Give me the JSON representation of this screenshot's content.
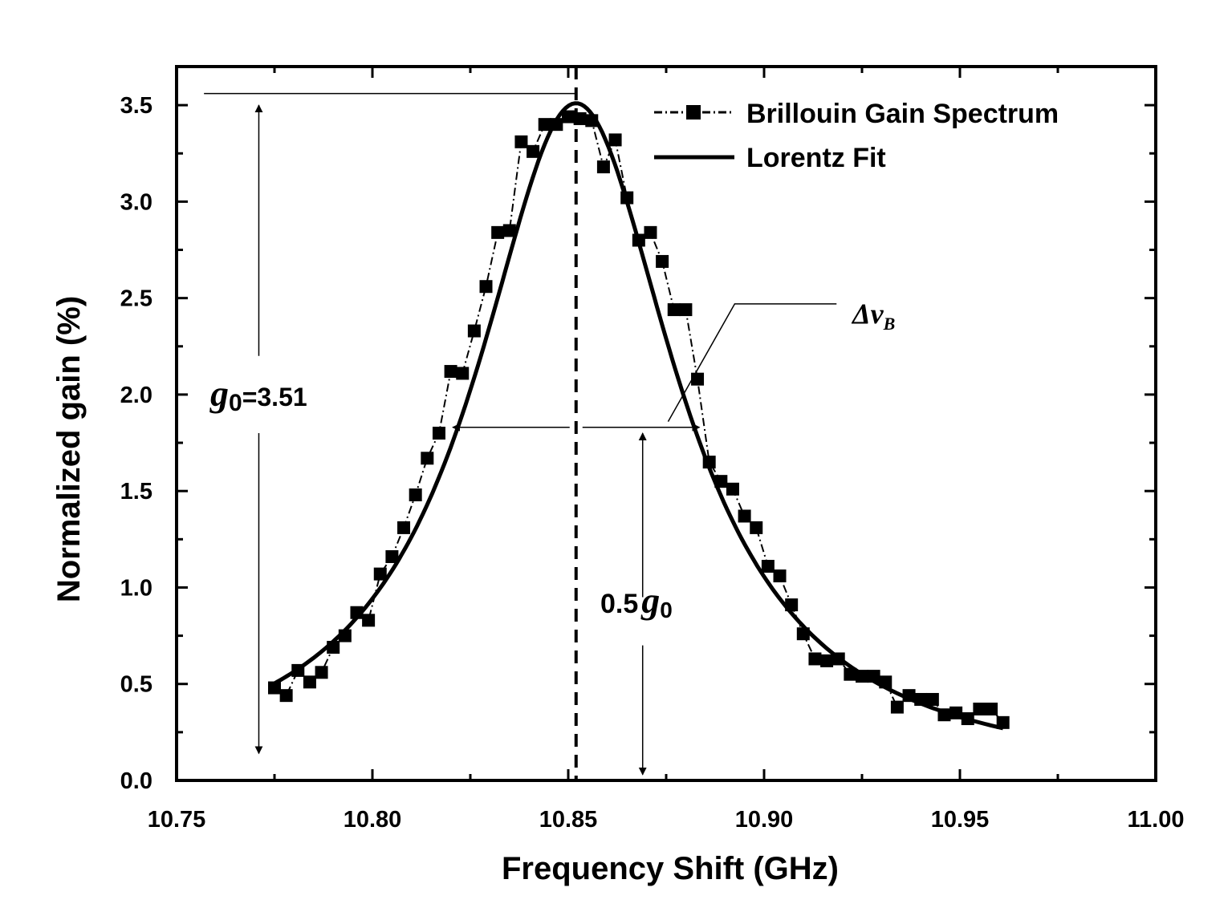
{
  "chart_data": {
    "type": "scatter",
    "xlabel": "Frequency Shift (GHz)",
    "ylabel": "Normalized gain (%)",
    "xlim": [
      10.75,
      11.0
    ],
    "ylim": [
      0.0,
      3.7
    ],
    "x_ticks": [
      "10.75",
      "10.80",
      "10.85",
      "10.90",
      "10.95",
      "11.00"
    ],
    "x_tick_values": [
      10.75,
      10.8,
      10.85,
      10.9,
      10.95,
      11.0
    ],
    "y_ticks": [
      "0.0",
      "0.5",
      "1.0",
      "1.5",
      "2.0",
      "2.5",
      "3.0",
      "3.5"
    ],
    "y_tick_values": [
      0.0,
      0.5,
      1.0,
      1.5,
      2.0,
      2.5,
      3.0,
      3.5
    ],
    "legend_position": "top-right",
    "series": [
      {
        "name": "Brillouin Gain Spectrum",
        "style": "dash-dot line with square markers",
        "x": [
          10.775,
          10.778,
          10.781,
          10.784,
          10.787,
          10.79,
          10.793,
          10.796,
          10.799,
          10.802,
          10.805,
          10.808,
          10.811,
          10.814,
          10.817,
          10.82,
          10.823,
          10.826,
          10.829,
          10.832,
          10.835,
          10.838,
          10.841,
          10.844,
          10.847,
          10.85,
          10.853,
          10.856,
          10.859,
          10.862,
          10.865,
          10.868,
          10.871,
          10.874,
          10.877,
          10.88,
          10.883,
          10.886,
          10.889,
          10.892,
          10.895,
          10.898,
          10.901,
          10.904,
          10.907,
          10.91,
          10.913,
          10.916,
          10.919,
          10.922,
          10.925,
          10.928,
          10.931,
          10.934,
          10.937,
          10.94,
          10.943,
          10.946,
          10.949,
          10.952,
          10.955,
          10.958,
          10.961
        ],
        "y": [
          0.48,
          0.44,
          0.57,
          0.51,
          0.56,
          0.69,
          0.75,
          0.87,
          0.83,
          1.07,
          1.16,
          1.31,
          1.48,
          1.67,
          1.8,
          2.12,
          2.11,
          2.33,
          2.56,
          2.84,
          2.85,
          3.31,
          3.26,
          3.4,
          3.4,
          3.44,
          3.43,
          3.42,
          3.18,
          3.32,
          3.02,
          2.8,
          2.84,
          2.69,
          2.44,
          2.44,
          2.08,
          1.65,
          1.55,
          1.51,
          1.37,
          1.31,
          1.11,
          1.06,
          0.91,
          0.76,
          0.63,
          0.62,
          0.63,
          0.55,
          0.54,
          0.54,
          0.51,
          0.38,
          0.44,
          0.42,
          0.42,
          0.34,
          0.35,
          0.32,
          0.37,
          0.37,
          0.3
        ]
      },
      {
        "name": "Lorentz Fit",
        "style": "solid line",
        "model": "lorentzian",
        "x_range": [
          10.775,
          10.961
        ],
        "center": 10.852,
        "peak": 3.51,
        "fwhm": 0.063
      }
    ],
    "annotations": {
      "g0_prefix": "g",
      "g0_subscript": "0",
      "g0_value": "=3.51",
      "half_prefix": "0.5",
      "half_g": "g",
      "half_subscript": "0",
      "delta_nu": "Δν",
      "delta_nu_subscript": "B",
      "peak_frequency": 10.852,
      "peak_level": 3.51,
      "half_level": 1.755,
      "fwhm_left": 10.8205,
      "fwhm_right": 10.8835,
      "g0_arrow_x": 10.771,
      "half_arrow_x": 10.869
    }
  }
}
